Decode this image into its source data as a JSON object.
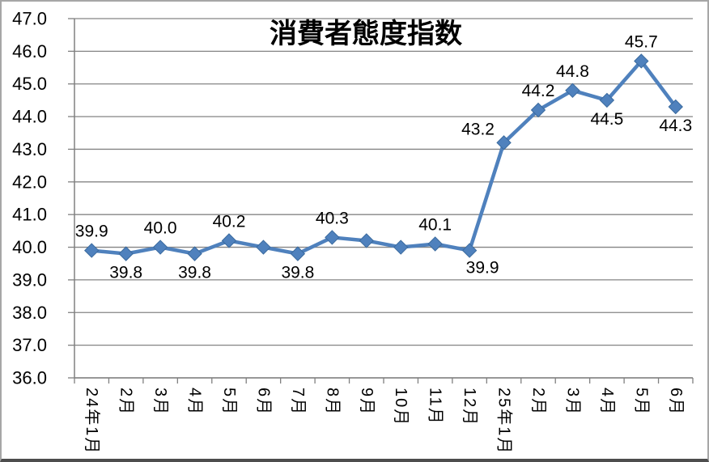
{
  "chart_data": {
    "type": "line",
    "title": "消費者態度指数",
    "categories": [
      "24年1月",
      "2月",
      "3月",
      "4月",
      "5月",
      "6月",
      "7月",
      "8月",
      "9月",
      "10月",
      "11月",
      "12月",
      "25年1月",
      "2月",
      "3月",
      "4月",
      "5月",
      "6月"
    ],
    "series": [
      {
        "name": "消費者態度指数",
        "values": [
          39.9,
          39.8,
          40.0,
          39.8,
          40.2,
          40.0,
          39.8,
          40.3,
          40.2,
          40.0,
          40.1,
          39.9,
          43.2,
          44.2,
          44.8,
          44.5,
          45.7,
          44.3
        ]
      }
    ],
    "data_labels": [
      {
        "text": "39.9",
        "pos": "above"
      },
      {
        "text": "39.8",
        "pos": "below"
      },
      {
        "text": "40.0",
        "pos": "above"
      },
      {
        "text": "39.8",
        "pos": "below"
      },
      {
        "text": "40.2",
        "pos": "above"
      },
      null,
      {
        "text": "39.8",
        "pos": "below"
      },
      {
        "text": "40.3",
        "pos": "above"
      },
      null,
      null,
      {
        "text": "40.1",
        "pos": "above"
      },
      {
        "text": "39.9",
        "pos": "below-right"
      },
      {
        "text": "43.2",
        "pos": "above-left"
      },
      {
        "text": "44.2",
        "pos": "above"
      },
      {
        "text": "44.8",
        "pos": "above"
      },
      {
        "text": "44.5",
        "pos": "below"
      },
      {
        "text": "45.7",
        "pos": "above"
      },
      {
        "text": "44.3",
        "pos": "below"
      }
    ],
    "ylim": [
      36.0,
      47.0
    ],
    "ytick_step": 1.0,
    "ytick_decimals": 1,
    "xlabel": "",
    "ylabel": "",
    "grid": true,
    "legend": "none",
    "marker": "diamond",
    "colors": {
      "series_line": "#4F81BD",
      "marker_fill": "#4F81BD",
      "marker_edge": "#3A6A9E",
      "gridline": "#848484",
      "axis": "#808080",
      "text": "#000000",
      "frame_light": "#A6A6A6",
      "frame_dark": "#4D4D4D",
      "background": "#FFFFFF"
    }
  }
}
